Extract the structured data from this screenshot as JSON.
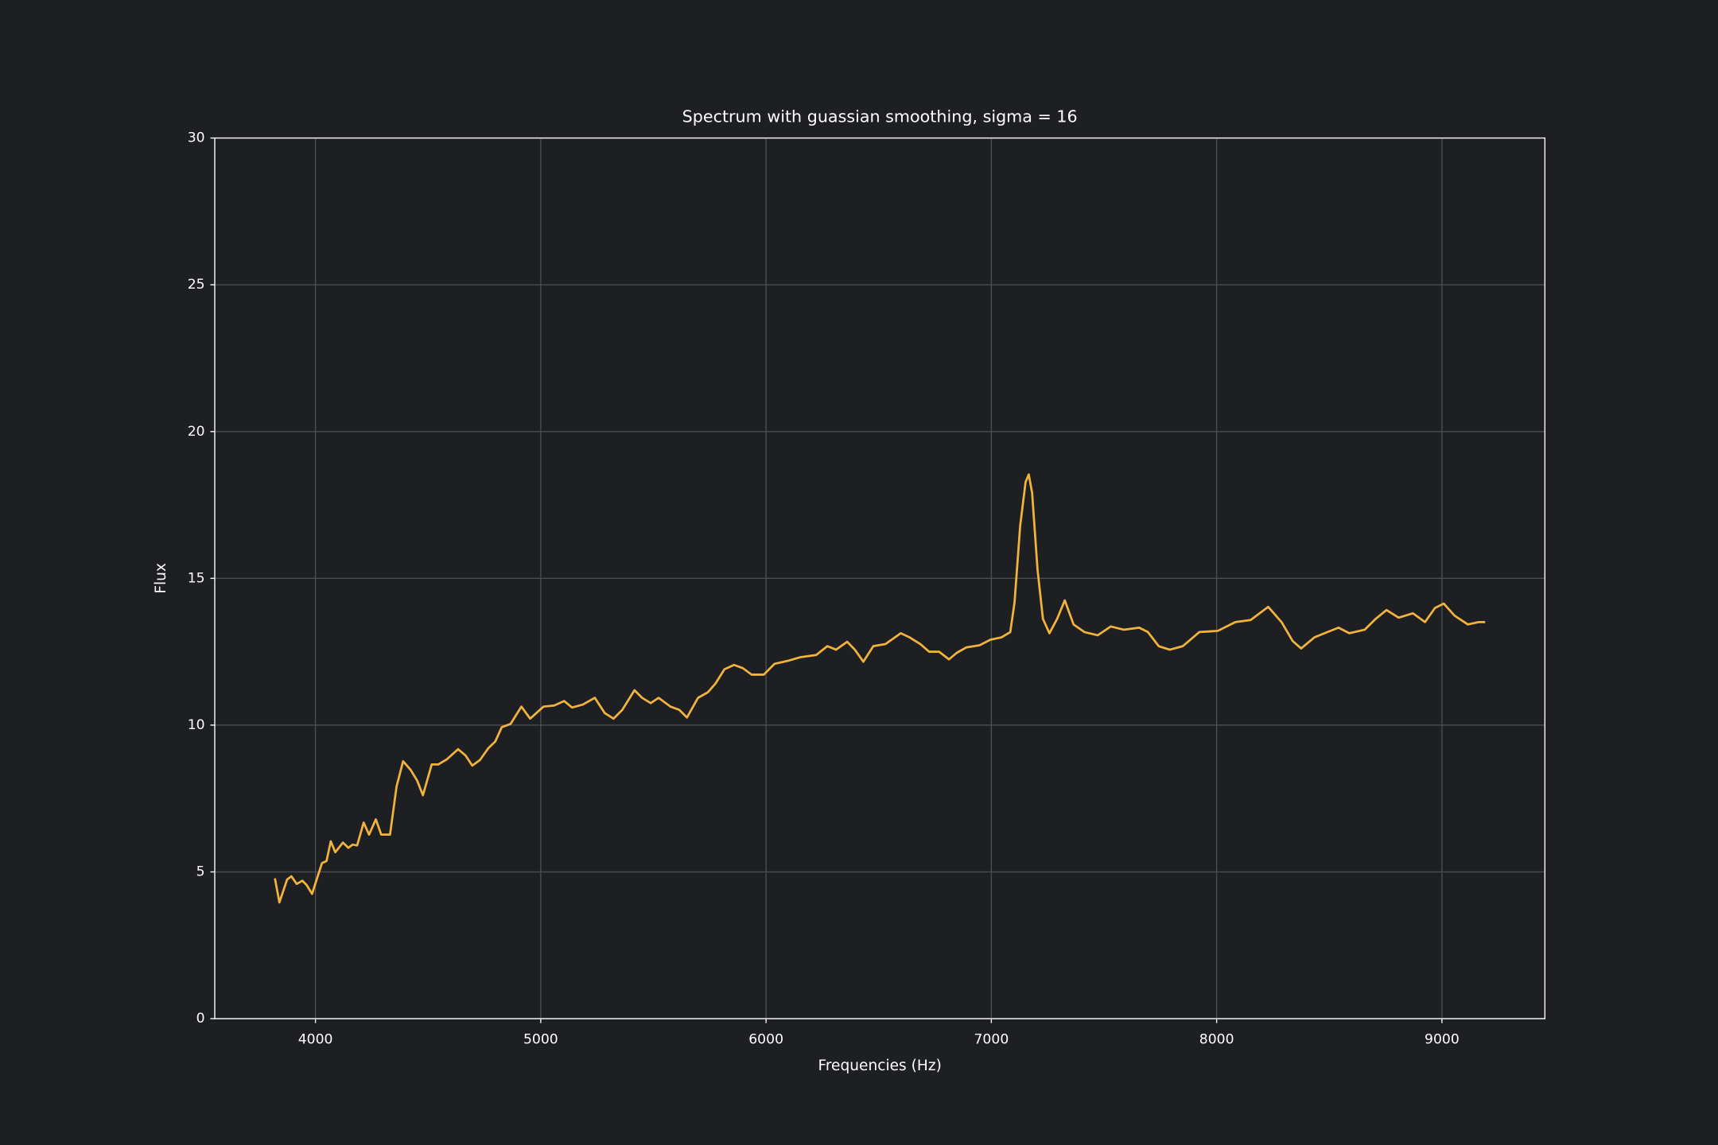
{
  "chart_data": {
    "type": "line",
    "title": "Spectrum with guassian smoothing, sigma = 16",
    "xlabel": "Frequencies (Hz)",
    "ylabel": "Flux",
    "xlim": [
      3553,
      9457
    ],
    "ylim": [
      0,
      30
    ],
    "xticks": [
      4000,
      5000,
      6000,
      7000,
      8000,
      9000
    ],
    "yticks": [
      0,
      5,
      10,
      15,
      20,
      25,
      30
    ],
    "grid": true,
    "x": [
      3820,
      3840,
      3874,
      3893,
      3917,
      3942,
      3961,
      3985,
      4010,
      4029,
      4049,
      4068,
      4088,
      4122,
      4146,
      4165,
      4185,
      4214,
      4238,
      4268,
      4292,
      4331,
      4360,
      4389,
      4423,
      4452,
      4477,
      4516,
      4545,
      4584,
      4633,
      4667,
      4696,
      4730,
      4768,
      4798,
      4827,
      4866,
      4914,
      4953,
      5012,
      5060,
      5104,
      5139,
      5187,
      5240,
      5284,
      5323,
      5362,
      5416,
      5450,
      5488,
      5523,
      5576,
      5615,
      5649,
      5698,
      5742,
      5776,
      5815,
      5858,
      5897,
      5936,
      5990,
      6038,
      6102,
      6150,
      6223,
      6272,
      6311,
      6360,
      6394,
      6432,
      6476,
      6530,
      6598,
      6637,
      6685,
      6724,
      6768,
      6812,
      6846,
      6890,
      6948,
      6996,
      7045,
      7084,
      7103,
      7128,
      7152,
      7166,
      7181,
      7205,
      7229,
      7258,
      7292,
      7326,
      7365,
      7413,
      7472,
      7530,
      7588,
      7656,
      7695,
      7743,
      7792,
      7850,
      7923,
      8005,
      8083,
      8151,
      8229,
      8288,
      8337,
      8375,
      8434,
      8492,
      8541,
      8589,
      8657,
      8706,
      8754,
      8808,
      8871,
      8925,
      8969,
      9008,
      9056,
      9115,
      9163,
      9192
    ],
    "series": [
      {
        "name": "Flux",
        "color": "#f2b33d",
        "values": [
          4.78,
          3.96,
          4.74,
          4.85,
          4.59,
          4.7,
          4.55,
          4.25,
          4.85,
          5.3,
          5.37,
          6.04,
          5.67,
          6.0,
          5.82,
          5.93,
          5.9,
          6.68,
          6.27,
          6.79,
          6.27,
          6.27,
          7.91,
          8.77,
          8.47,
          8.1,
          7.61,
          8.66,
          8.66,
          8.84,
          9.18,
          8.96,
          8.62,
          8.81,
          9.22,
          9.44,
          9.93,
          10.04,
          10.63,
          10.22,
          10.63,
          10.67,
          10.82,
          10.6,
          10.7,
          10.93,
          10.41,
          10.22,
          10.52,
          11.19,
          10.93,
          10.75,
          10.93,
          10.63,
          10.52,
          10.26,
          10.93,
          11.12,
          11.42,
          11.9,
          12.05,
          11.94,
          11.72,
          11.72,
          12.09,
          12.2,
          12.31,
          12.39,
          12.69,
          12.57,
          12.84,
          12.57,
          12.16,
          12.69,
          12.76,
          13.13,
          12.99,
          12.76,
          12.5,
          12.5,
          12.24,
          12.46,
          12.65,
          12.72,
          12.91,
          12.99,
          13.17,
          14.18,
          16.79,
          18.28,
          18.54,
          17.91,
          15.3,
          13.62,
          13.13,
          13.62,
          14.25,
          13.43,
          13.17,
          13.06,
          13.36,
          13.25,
          13.32,
          13.17,
          12.69,
          12.57,
          12.69,
          13.17,
          13.21,
          13.51,
          13.58,
          14.03,
          13.51,
          12.87,
          12.61,
          12.99,
          13.17,
          13.32,
          13.13,
          13.25,
          13.62,
          13.92,
          13.66,
          13.81,
          13.51,
          13.99,
          14.14,
          13.73,
          13.43,
          13.51,
          13.51
        ]
      }
    ]
  }
}
